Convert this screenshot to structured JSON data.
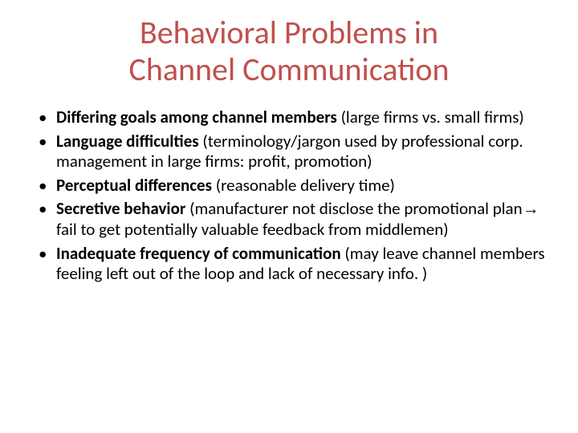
{
  "title_color": "#c0504d",
  "body_color": "#000000",
  "title_line1": "Behavioral Problems in",
  "title_line2": "Channel Communication",
  "bullets": [
    {
      "bold": "Differing goals among channel members ",
      "rest": "(large firms vs. small firms)"
    },
    {
      "bold": "Language difficulties ",
      "rest": "(terminology/jargon used by professional corp. management in large firms: profit, promotion)"
    },
    {
      "bold": "Perceptual differences ",
      "rest": "(reasonable delivery time)"
    },
    {
      "bold": "Secretive behavior ",
      "rest": "(manufacturer not disclose the promotional plan",
      "arrow": "→",
      "rest2": " fail to get potentially valuable feedback from middlemen)"
    },
    {
      "bold": "Inadequate frequency of communication ",
      "rest": "(may leave channel members feeling left out of the loop and lack of  necessary info. )"
    }
  ]
}
